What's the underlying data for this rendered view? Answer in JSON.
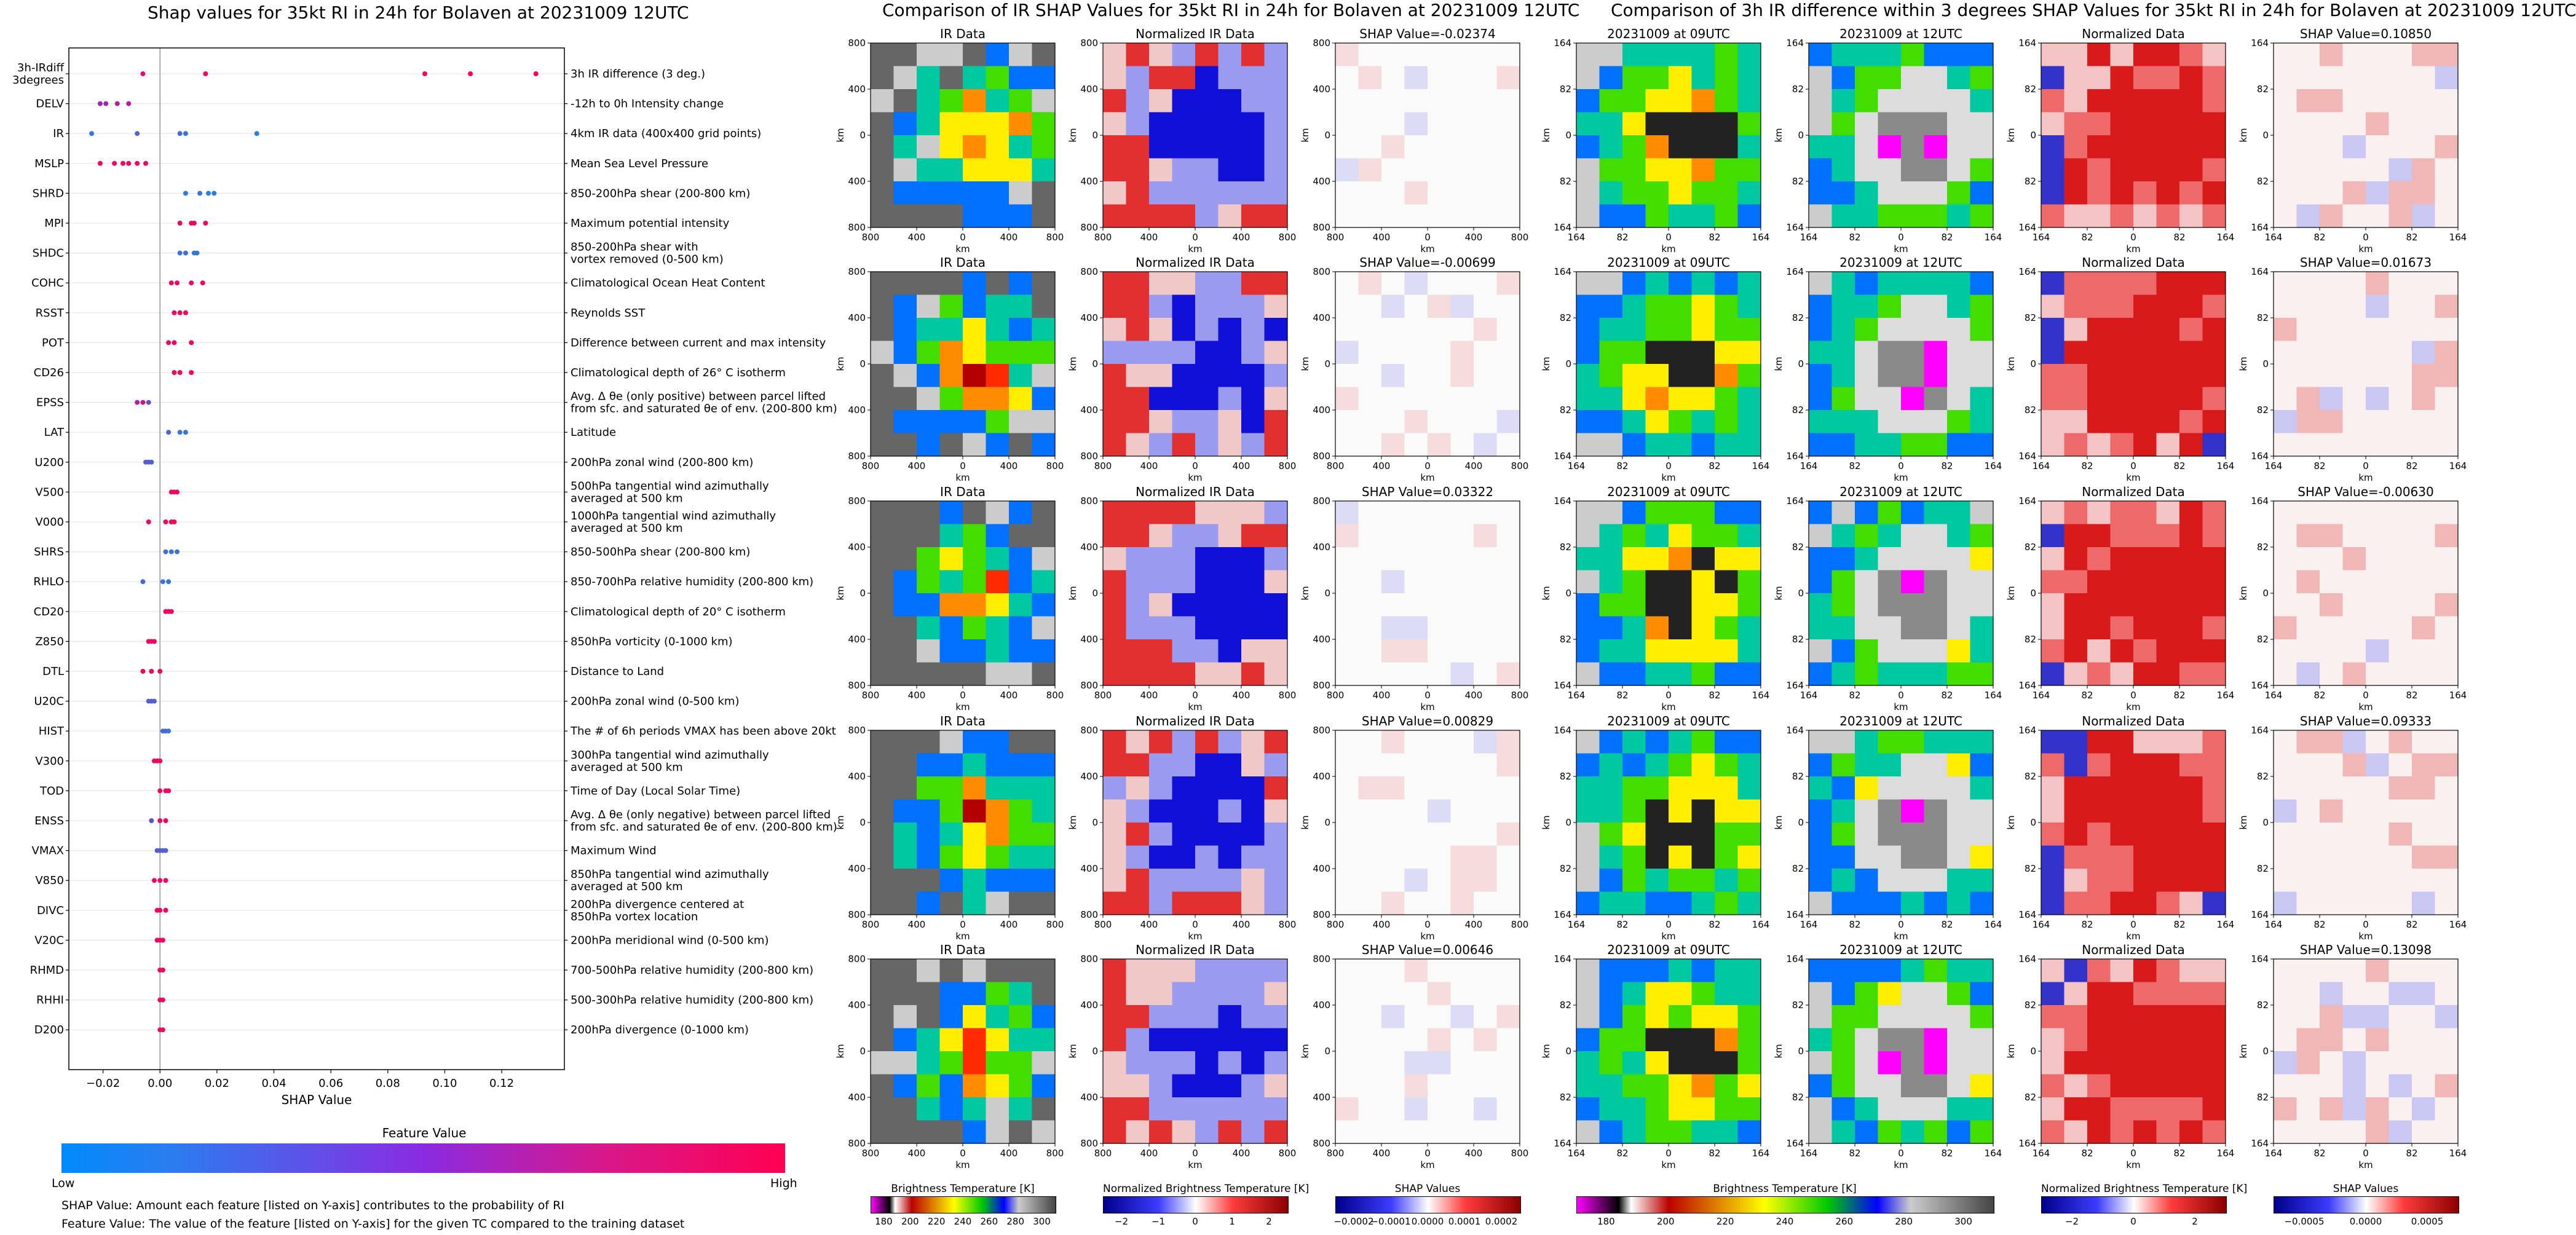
{
  "left_chart": {
    "title": "Shap values for 35kt RI in 24h for Bolaven at 20231009 12UTC",
    "xlabel": "SHAP Value",
    "colorbar_title": "Feature Value",
    "colorbar_low": "Low",
    "colorbar_high": "High",
    "note_shap": "SHAP Value: Amount each feature [listed on Y-axis] contributes to the probability of RI",
    "note_feature": "Feature Value: The value of the feature [listed on Y-axis] for the given TC compared to the training dataset"
  },
  "chart_data": [
    {
      "type": "scatter",
      "title": "Shap values for 35kt RI in 24h for Bolaven at 20231009 12UTC",
      "xlabel": "SHAP Value",
      "xlim": [
        -0.032,
        0.142
      ],
      "xticks": [
        -0.02,
        0.0,
        0.02,
        0.04,
        0.06,
        0.08,
        0.1,
        0.12
      ],
      "xtick_labels": [
        "−0.02",
        "0.00",
        "0.02",
        "0.04",
        "0.06",
        "0.08",
        "0.10",
        "0.12"
      ],
      "colors": {
        "low": "#1e88e5",
        "mid": "#9c27b0",
        "high": "#ff0052"
      },
      "features": [
        {
          "code": "3h-IRdiff\n3degrees",
          "desc": "3h IR difference (3 deg.)",
          "points": [
            [
              -0.006,
              0.8
            ],
            [
              0.016,
              0.9
            ],
            [
              0.093,
              0.95
            ],
            [
              0.109,
              0.97
            ],
            [
              0.132,
              1.0
            ]
          ]
        },
        {
          "code": "DELV",
          "desc": "-12h to 0h Intensity change",
          "points": [
            [
              -0.021,
              0.5
            ],
            [
              -0.019,
              0.5
            ],
            [
              -0.015,
              0.55
            ],
            [
              -0.011,
              0.6
            ]
          ]
        },
        {
          "code": "IR",
          "desc": "4km IR data (400x400 grid points)",
          "points": [
            [
              -0.024,
              0.1
            ],
            [
              -0.008,
              0.2
            ],
            [
              0.007,
              0.15
            ],
            [
              0.009,
              0.1
            ],
            [
              0.034,
              0.05
            ]
          ]
        },
        {
          "code": "MSLP",
          "desc": "Mean Sea Level Pressure",
          "points": [
            [
              -0.021,
              0.95
            ],
            [
              -0.016,
              0.9
            ],
            [
              -0.013,
              0.92
            ],
            [
              -0.011,
              0.88
            ],
            [
              -0.008,
              0.9
            ],
            [
              -0.005,
              0.85
            ]
          ]
        },
        {
          "code": "SHRD",
          "desc": "850-200hPa shear (200-800 km)",
          "points": [
            [
              0.009,
              0.08
            ],
            [
              0.014,
              0.1
            ],
            [
              0.017,
              0.05
            ],
            [
              0.019,
              0.08
            ]
          ]
        },
        {
          "code": "MPI",
          "desc": "Maximum potential intensity",
          "points": [
            [
              0.007,
              0.9
            ],
            [
              0.011,
              0.92
            ],
            [
              0.012,
              0.88
            ],
            [
              0.016,
              0.95
            ]
          ]
        },
        {
          "code": "SHDC",
          "desc": "850-200hPa shear with\nvortex removed (0-500 km)",
          "points": [
            [
              0.007,
              0.1
            ],
            [
              0.009,
              0.12
            ],
            [
              0.012,
              0.08
            ],
            [
              0.013,
              0.1
            ]
          ]
        },
        {
          "code": "COHC",
          "desc": "Climatological Ocean Heat Content",
          "points": [
            [
              0.004,
              0.9
            ],
            [
              0.006,
              0.92
            ],
            [
              0.011,
              0.88
            ],
            [
              0.015,
              0.95
            ]
          ]
        },
        {
          "code": "RSST",
          "desc": "Reynolds SST",
          "points": [
            [
              0.005,
              0.9
            ],
            [
              0.007,
              0.92
            ],
            [
              0.009,
              0.95
            ]
          ]
        },
        {
          "code": "POT",
          "desc": "Difference between current and max intensity",
          "points": [
            [
              0.003,
              0.9
            ],
            [
              0.005,
              0.92
            ],
            [
              0.011,
              0.95
            ]
          ]
        },
        {
          "code": "CD26",
          "desc": "Climatological depth of 26° C isotherm",
          "points": [
            [
              0.005,
              0.9
            ],
            [
              0.007,
              0.92
            ],
            [
              0.011,
              0.95
            ]
          ]
        },
        {
          "code": "EPSS",
          "desc": "Avg. Δ θe (only positive) between parcel lifted\nfrom sfc. and saturated θe of env. (200-800 km)",
          "points": [
            [
              -0.008,
              0.6
            ],
            [
              -0.006,
              0.7
            ],
            [
              -0.004,
              0.3
            ]
          ]
        },
        {
          "code": "LAT",
          "desc": "Latitude",
          "points": [
            [
              0.003,
              0.15
            ],
            [
              0.007,
              0.1
            ],
            [
              0.009,
              0.12
            ]
          ]
        },
        {
          "code": "U200",
          "desc": "200hPa zonal wind (200-800 km)",
          "points": [
            [
              -0.005,
              0.2
            ],
            [
              -0.004,
              0.25
            ],
            [
              -0.003,
              0.2
            ]
          ]
        },
        {
          "code": "V500",
          "desc": "500hPa tangential wind azimuthally\naveraged at 500 km",
          "points": [
            [
              0.004,
              0.9
            ],
            [
              0.005,
              0.92
            ],
            [
              0.006,
              0.95
            ]
          ]
        },
        {
          "code": "V000",
          "desc": "1000hPa tangential wind azimuthally\naveraged at 500 km",
          "points": [
            [
              -0.004,
              0.9
            ],
            [
              0.002,
              0.92
            ],
            [
              0.004,
              0.94
            ],
            [
              0.005,
              0.96
            ]
          ]
        },
        {
          "code": "SHRS",
          "desc": "850-500hPa shear (200-800 km)",
          "points": [
            [
              0.002,
              0.15
            ],
            [
              0.004,
              0.1
            ],
            [
              0.006,
              0.12
            ]
          ]
        },
        {
          "code": "RHLO",
          "desc": "850-700hPa relative humidity (200-800 km)",
          "points": [
            [
              -0.006,
              0.15
            ],
            [
              0.001,
              0.1
            ],
            [
              0.003,
              0.12
            ]
          ]
        },
        {
          "code": "CD20",
          "desc": "Climatological depth of 20° C isotherm",
          "points": [
            [
              0.002,
              0.9
            ],
            [
              0.003,
              0.92
            ],
            [
              0.004,
              0.95
            ]
          ]
        },
        {
          "code": "Z850",
          "desc": "850hPa vorticity (0-1000 km)",
          "points": [
            [
              -0.004,
              0.9
            ],
            [
              -0.003,
              0.92
            ],
            [
              -0.002,
              0.95
            ]
          ]
        },
        {
          "code": "DTL",
          "desc": "Distance to Land",
          "points": [
            [
              -0.006,
              0.9
            ],
            [
              -0.003,
              0.92
            ],
            [
              0.0,
              0.95
            ]
          ]
        },
        {
          "code": "U20C",
          "desc": "200hPa zonal wind (0-500 km)",
          "points": [
            [
              -0.004,
              0.2
            ],
            [
              -0.003,
              0.25
            ],
            [
              -0.002,
              0.2
            ]
          ]
        },
        {
          "code": "HIST",
          "desc": "The # of 6h periods VMAX has been above 20kt",
          "points": [
            [
              0.001,
              0.15
            ],
            [
              0.002,
              0.2
            ],
            [
              0.003,
              0.1
            ]
          ]
        },
        {
          "code": "V300",
          "desc": "300hPa tangential wind azimuthally\naveraged at 500 km",
          "points": [
            [
              -0.002,
              0.9
            ],
            [
              -0.001,
              0.92
            ],
            [
              0.0,
              0.95
            ]
          ]
        },
        {
          "code": "TOD",
          "desc": "Time of Day (Local Solar Time)",
          "points": [
            [
              0.0,
              0.9
            ],
            [
              0.002,
              0.92
            ],
            [
              0.003,
              0.95
            ]
          ]
        },
        {
          "code": "ENSS",
          "desc": "Avg. Δ θe (only negative) between parcel lifted\nfrom sfc. and saturated θe of env. (200-800 km)",
          "points": [
            [
              -0.003,
              0.3
            ],
            [
              0.0,
              0.9
            ],
            [
              0.002,
              0.92
            ]
          ]
        },
        {
          "code": "VMAX",
          "desc": "Maximum Wind",
          "points": [
            [
              -0.001,
              0.2
            ],
            [
              0.0,
              0.25
            ],
            [
              0.001,
              0.2
            ],
            [
              0.002,
              0.2
            ]
          ]
        },
        {
          "code": "V850",
          "desc": "850hPa tangential wind azimuthally\naveraged at 500 km",
          "points": [
            [
              -0.002,
              0.9
            ],
            [
              0.0,
              0.92
            ],
            [
              0.002,
              0.95
            ]
          ]
        },
        {
          "code": "DIVC",
          "desc": "200hPa divergence centered at\n850hPa vortex location",
          "points": [
            [
              -0.001,
              0.9
            ],
            [
              0.0,
              0.92
            ],
            [
              0.002,
              0.95
            ]
          ]
        },
        {
          "code": "V20C",
          "desc": "200hPa meridional wind (0-500 km)",
          "points": [
            [
              -0.001,
              0.9
            ],
            [
              0.0,
              0.92
            ],
            [
              0.001,
              0.95
            ]
          ]
        },
        {
          "code": "RHMD",
          "desc": "700-500hPa relative humidity (200-800 km)",
          "points": [
            [
              0.0,
              0.9
            ],
            [
              0.001,
              0.92
            ]
          ]
        },
        {
          "code": "RHHI",
          "desc": "500-300hPa relative humidity (200-800 km)",
          "points": [
            [
              0.0,
              0.9
            ],
            [
              0.001,
              0.92
            ]
          ]
        },
        {
          "code": "D200",
          "desc": "200hPa divergence (0-1000 km)",
          "points": [
            [
              0.0,
              0.9
            ],
            [
              0.001,
              0.92
            ]
          ]
        }
      ]
    },
    {
      "type": "heatmap",
      "title": "Comparison of IR SHAP Values for 35kt RI in 24h for Bolaven at 20231009 12UTC",
      "columns": [
        "IR Data",
        "Normalized IR Data",
        "SHAP Value"
      ],
      "axis_label": "km",
      "ticks": [
        "800",
        "400",
        "0",
        "400",
        "800"
      ],
      "shap_values": [
        "SHAP Value=-0.02374",
        "SHAP Value=-0.00699",
        "SHAP Value=0.03322",
        "SHAP Value=0.00829",
        "SHAP Value=0.00646"
      ],
      "colorbars": [
        {
          "label": "Brightness Temperature [K]",
          "ticks": [
            "180",
            "200",
            "220",
            "240",
            "260",
            "280",
            "300"
          ]
        },
        {
          "label": "Normalized Brightness Temperature [K]",
          "ticks": [
            "−2",
            "−1",
            "0",
            "1",
            "2"
          ]
        },
        {
          "label": "SHAP Values",
          "ticks": [
            "−0.0002",
            "−0.0001",
            "0.0000",
            "0.0001",
            "0.0002"
          ]
        }
      ]
    },
    {
      "type": "heatmap",
      "title": "Comparison of 3h IR difference within 3 degrees SHAP Values for 35kt RI in 24h for Bolaven at 20231009 12UTC",
      "columns": [
        "20231009 at 09UTC",
        "20231009 at 12UTC",
        "Normalized Data",
        "SHAP Value"
      ],
      "axis_label": "km",
      "ticks": [
        "164",
        "82",
        "0",
        "82",
        "164"
      ],
      "shap_values": [
        "SHAP Value=0.10850",
        "SHAP Value=0.01673",
        "SHAP Value=-0.00630",
        "SHAP Value=0.09333",
        "SHAP Value=0.13098"
      ],
      "colorbars": [
        {
          "label": "Brightness Temperature [K]",
          "ticks": [
            "180",
            "200",
            "220",
            "240",
            "260",
            "280",
            "300"
          ]
        },
        {
          "label": "Normalized Brightness Temperature [K]",
          "ticks": [
            "−2",
            "0",
            "2"
          ]
        },
        {
          "label": "SHAP Values",
          "ticks": [
            "−0.0005",
            "0.0000",
            "0.0005"
          ]
        }
      ]
    }
  ]
}
